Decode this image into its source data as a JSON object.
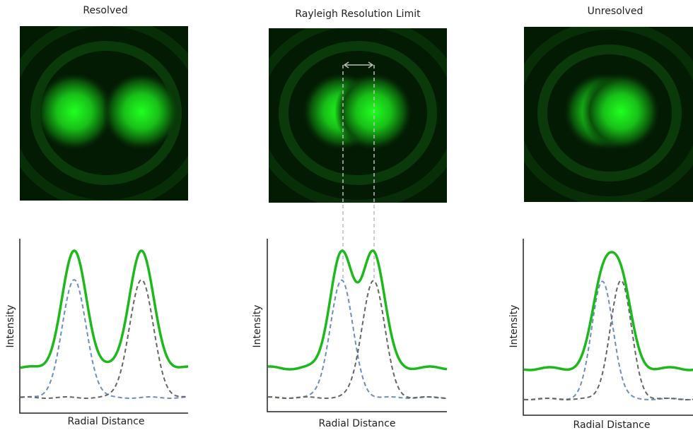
{
  "panels": [
    {
      "title": "Resolved",
      "y_label": "Intensity",
      "x_label": "Radial Distance"
    },
    {
      "title": "Rayleigh Resolution Limit",
      "y_label": "Intensity",
      "x_label": "Radial Distance"
    },
    {
      "title": "Unresolved",
      "y_label": "Intensity",
      "x_label": "Radial Distance"
    }
  ]
}
